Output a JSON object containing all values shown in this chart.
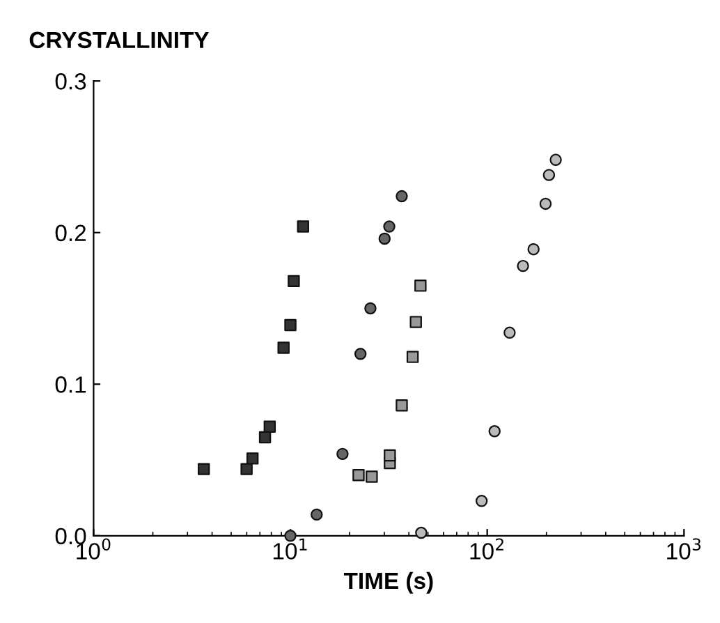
{
  "chart_data": {
    "type": "scatter",
    "title": "CRYSTALLINITY",
    "xlabel": "TIME (s)",
    "log": "x",
    "xlim": [
      1,
      1000
    ],
    "xticks": [
      {
        "value": 1,
        "label": "10$^{0}$"
      },
      {
        "value": 10,
        "label": "10$^{1}$"
      },
      {
        "value": 100,
        "label": "10$^{2}$"
      },
      {
        "value": 1000,
        "label": "10$^{3}$"
      }
    ],
    "ylim": [
      0,
      0.3
    ],
    "yticks": [
      {
        "value": 0,
        "label": "0.0"
      },
      {
        "value": 0.1,
        "label": "0.1"
      },
      {
        "value": 0.2,
        "label": "0.2"
      },
      {
        "value": 0.3,
        "label": "0.3"
      }
    ],
    "grid": false,
    "legend": false,
    "series": [
      {
        "marker": "square",
        "color": "#333333",
        "x": [
          3.63,
          5.99,
          6.42,
          7.43,
          7.85,
          9.23,
          10.0,
          10.4,
          11.6
        ],
        "values": [
          0.044,
          0.044,
          0.051,
          0.065,
          0.072,
          0.124,
          0.139,
          0.168,
          0.204
        ]
      },
      {
        "marker": "circle",
        "color": "#666666",
        "x": [
          10.0,
          13.6,
          18.4,
          22.7,
          25.5,
          30.1,
          31.8,
          36.8
        ],
        "values": [
          0.0,
          0.014,
          0.054,
          0.12,
          0.15,
          0.196,
          0.204,
          0.224
        ]
      },
      {
        "marker": "square",
        "color": "#999999",
        "x": [
          22.2,
          25.9,
          32.0,
          32.0,
          36.8,
          41.8,
          43.4,
          45.8
        ],
        "values": [
          0.04,
          0.039,
          0.048,
          0.053,
          0.086,
          0.118,
          0.141,
          0.165
        ]
      },
      {
        "marker": "circle",
        "color": "#bbbbbb",
        "x": [
          46.2,
          93.7,
          109,
          130,
          152,
          172,
          198,
          206,
          223
        ],
        "values": [
          0.002,
          0.023,
          0.069,
          0.134,
          0.178,
          0.189,
          0.219,
          0.238,
          0.248
        ]
      }
    ]
  }
}
